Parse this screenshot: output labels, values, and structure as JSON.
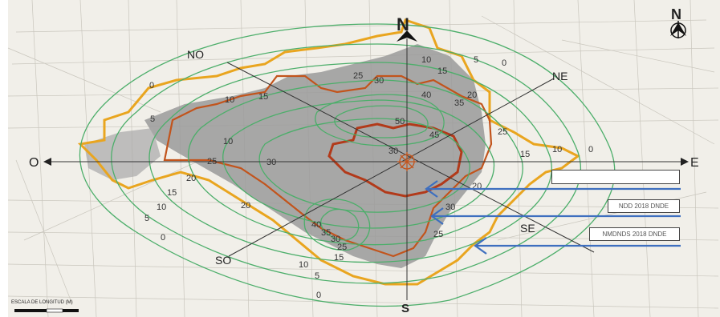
{
  "compass": {
    "north": "N",
    "south": "S",
    "east": "E",
    "west": "O",
    "northeast": "NE",
    "northwest": "NO",
    "southeast": "SE",
    "southwest": "SO",
    "north_arrow": "N"
  },
  "contour_labels": [
    "0",
    "5",
    "10",
    "15",
    "20",
    "25",
    "30",
    "35",
    "40",
    "45",
    "50"
  ],
  "legend": [
    {
      "label": ""
    },
    {
      "label": "NDD 2018 DNDE"
    },
    {
      "label": "NMDNDS 2018 DNDE"
    }
  ],
  "scale_text": "ESCALA DE LONGITUD (M)",
  "colors": {
    "contour_green": "#4cae6a",
    "city_limit_orange": "#e9a51f",
    "inner_zone_brown": "#c2541c",
    "core_red": "#b23a1a",
    "arrow_blue": "#3e6fbf",
    "urban_gray": "#8b8b8b"
  }
}
